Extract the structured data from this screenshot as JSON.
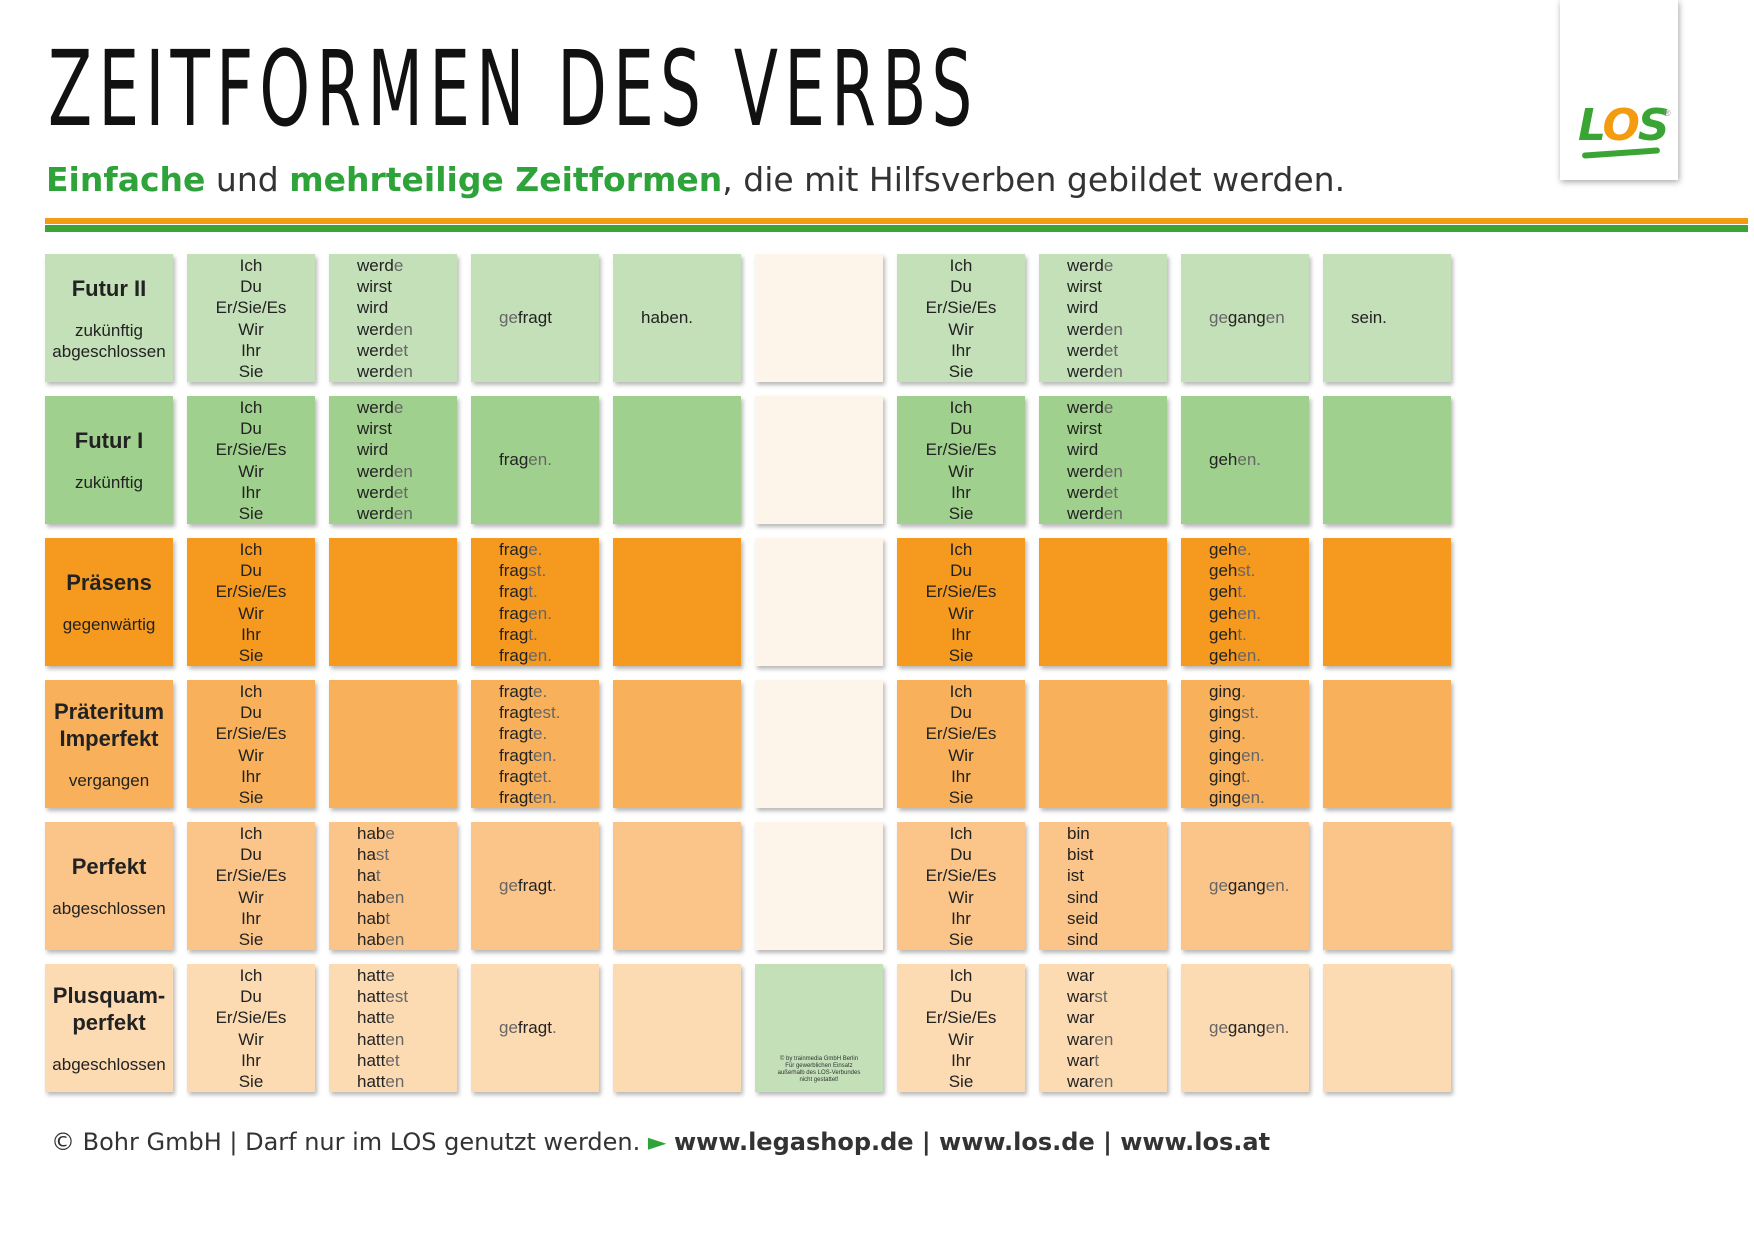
{
  "title": "ZEITFORMEN DES VERBS",
  "subtitle": {
    "part1": "Einfache",
    "part2": " und ",
    "part3": "mehrteilige Zeitformen",
    "part4": ", die mit Hilfsverben gebildet werden."
  },
  "logo": "LOS",
  "colors": {
    "green_light": "#c3e0b8",
    "green_mid": "#9fd08d",
    "orange_dark": "#f6991f",
    "orange_mid": "#f8b15a",
    "orange_light": "#fbc589",
    "orange_pale": "#fddbb2",
    "cream": "#fdf5ea",
    "accent_green": "#2ea33a",
    "accent_orange": "#f39c12"
  },
  "pronouns": [
    "Ich",
    "Du",
    "Er/Sie/Es",
    "Wir",
    "Ihr",
    "Sie"
  ],
  "rows": [
    {
      "name": "Futur II",
      "desc": "zukünftig\nabgeschlossen",
      "aux1": [
        [
          "werd",
          "e"
        ],
        [
          "wirst",
          ""
        ],
        [
          "wird",
          ""
        ],
        [
          "werd",
          "en"
        ],
        [
          "werd",
          "et"
        ],
        [
          "werd",
          "en"
        ]
      ],
      "form1": [
        [
          "ge",
          "fragt",
          ""
        ]
      ],
      "aux1b": "haben.",
      "aux2": [
        [
          "werd",
          "e"
        ],
        [
          "wirst",
          ""
        ],
        [
          "wird",
          ""
        ],
        [
          "werd",
          "en"
        ],
        [
          "werd",
          "et"
        ],
        [
          "werd",
          "en"
        ]
      ],
      "form2": [
        [
          "ge",
          "gang",
          "en"
        ]
      ],
      "aux2b": "sein."
    },
    {
      "name": "Futur I",
      "desc": "zukünftig",
      "aux1": [
        [
          "werd",
          "e"
        ],
        [
          "wirst",
          ""
        ],
        [
          "wird",
          ""
        ],
        [
          "werd",
          "en"
        ],
        [
          "werd",
          "et"
        ],
        [
          "werd",
          "en"
        ]
      ],
      "form1": [
        [
          "",
          "frag",
          "en."
        ]
      ],
      "aux1b": "",
      "aux2": [
        [
          "werd",
          "e"
        ],
        [
          "wirst",
          ""
        ],
        [
          "wird",
          ""
        ],
        [
          "werd",
          "en"
        ],
        [
          "werd",
          "et"
        ],
        [
          "werd",
          "en"
        ]
      ],
      "form2": [
        [
          "",
          "geh",
          "en."
        ]
      ],
      "aux2b": ""
    },
    {
      "name": "Präsens",
      "desc": "gegenwärtig",
      "aux1": [],
      "form1": [
        [
          "",
          "frag",
          "e."
        ],
        [
          "",
          "frag",
          "st."
        ],
        [
          "",
          "frag",
          "t."
        ],
        [
          "",
          "frag",
          "en."
        ],
        [
          "",
          "frag",
          "t."
        ],
        [
          "",
          "frag",
          "en."
        ]
      ],
      "aux1b": "",
      "aux2": [],
      "form2": [
        [
          "",
          "geh",
          "e."
        ],
        [
          "",
          "geh",
          "st."
        ],
        [
          "",
          "geh",
          "t."
        ],
        [
          "",
          "geh",
          "en."
        ],
        [
          "",
          "geh",
          "t."
        ],
        [
          "",
          "geh",
          "en."
        ]
      ],
      "aux2b": ""
    },
    {
      "name": "Präteritum\nImperfekt",
      "desc": "vergangen",
      "aux1": [],
      "form1": [
        [
          "",
          "fragt",
          "e."
        ],
        [
          "",
          "fragt",
          "est."
        ],
        [
          "",
          "fragt",
          "e."
        ],
        [
          "",
          "fragt",
          "en."
        ],
        [
          "",
          "fragt",
          "et."
        ],
        [
          "",
          "fragt",
          "en."
        ]
      ],
      "aux1b": "",
      "aux2": [],
      "form2": [
        [
          "",
          "ging",
          ". "
        ],
        [
          "",
          "ging",
          "st."
        ],
        [
          "",
          "ging",
          "."
        ],
        [
          "",
          "ging",
          "en."
        ],
        [
          "",
          "ging",
          "t."
        ],
        [
          "",
          "ging",
          "en."
        ]
      ],
      "aux2b": ""
    },
    {
      "name": "Perfekt",
      "desc": "abgeschlossen",
      "aux1": [
        [
          "hab",
          "e"
        ],
        [
          "ha",
          "st"
        ],
        [
          "ha",
          "t"
        ],
        [
          "hab",
          "en"
        ],
        [
          "hab",
          "t"
        ],
        [
          "hab",
          "en"
        ]
      ],
      "form1": [
        [
          "ge",
          "fragt",
          "."
        ]
      ],
      "aux1b": "",
      "aux2": [
        [
          "bin",
          ""
        ],
        [
          "bist",
          ""
        ],
        [
          "ist",
          ""
        ],
        [
          "sind",
          ""
        ],
        [
          "seid",
          ""
        ],
        [
          "sind",
          ""
        ]
      ],
      "form2": [
        [
          "ge",
          "gang",
          "en."
        ]
      ],
      "aux2b": ""
    },
    {
      "name": "Plusquam-\nperfekt",
      "desc": "abgeschlossen",
      "aux1": [
        [
          "hatt",
          "e"
        ],
        [
          "hatt",
          "est"
        ],
        [
          "hatt",
          "e"
        ],
        [
          "hatt",
          "en"
        ],
        [
          "hatt",
          "et"
        ],
        [
          "hatt",
          "en"
        ]
      ],
      "form1": [
        [
          "ge",
          "fragt",
          "."
        ]
      ],
      "aux1b": "",
      "aux2": [
        [
          "war",
          ""
        ],
        [
          "war",
          "st"
        ],
        [
          "war",
          ""
        ],
        [
          "war",
          "en"
        ],
        [
          "war",
          "t"
        ],
        [
          "war",
          "en"
        ]
      ],
      "form2": [
        [
          "ge",
          "gang",
          "en."
        ]
      ],
      "aux2b": ""
    }
  ],
  "note": "© by trainmedia GmbH Berlin\nFür gewerblichen Einsatz\naußerhalb des LOS-Verbundes\nnicht gestattet!",
  "footer": {
    "copyright": "© Bohr GmbH | Darf nur im LOS genutzt werden.",
    "arrow": "►",
    "links": "www.legashop.de | www.los.de | www.los.at"
  }
}
